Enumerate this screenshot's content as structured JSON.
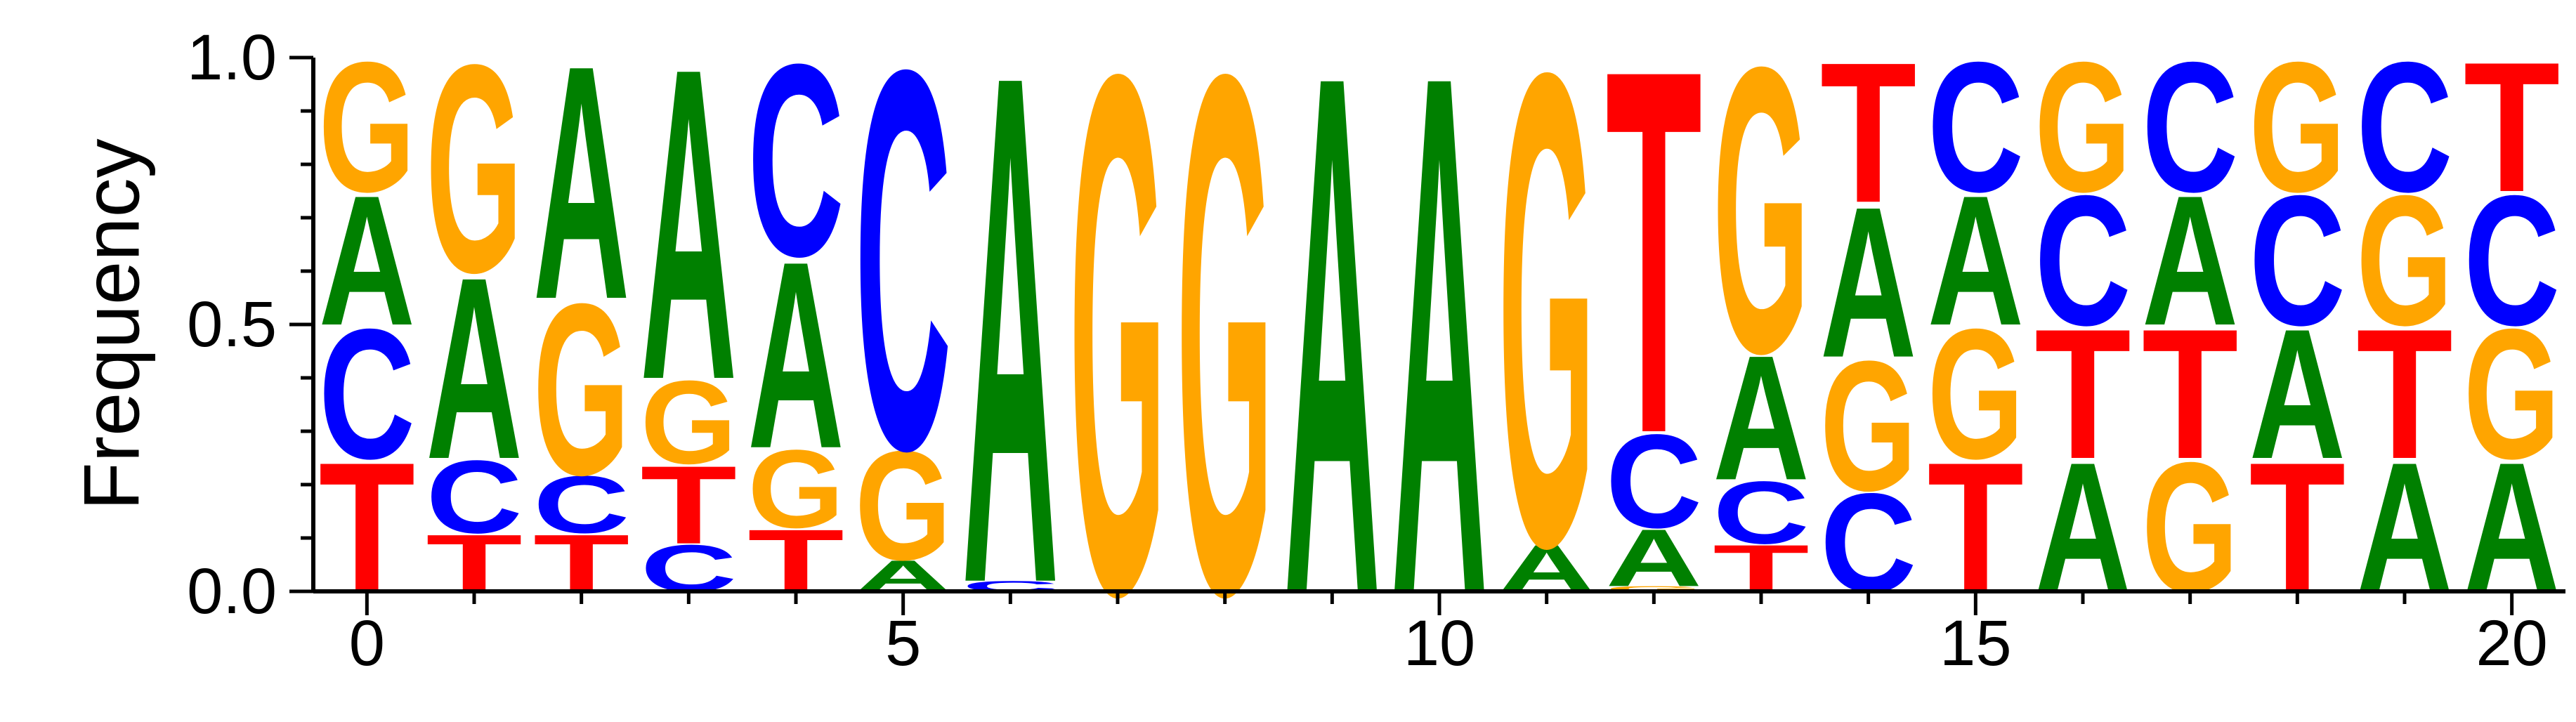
{
  "chart_data": {
    "type": "sequence-logo",
    "ylabel": "Frequency",
    "xlabel": "",
    "ylim": [
      0,
      1
    ],
    "xlim": [
      -0.5,
      20.5
    ],
    "yticks": [
      0.0,
      0.5,
      1.0
    ],
    "ytick_labels": [
      "0.0",
      "0.5",
      "1.0"
    ],
    "xticks": [
      0,
      5,
      10,
      15,
      20
    ],
    "xtick_labels": [
      "0",
      "5",
      "10",
      "15",
      "20"
    ],
    "colors": {
      "A": "#008000",
      "C": "#0000ff",
      "G": "#ffa500",
      "T": "#ff0000"
    },
    "positions": [
      {
        "x": 0,
        "stack": [
          [
            "T",
            0.25
          ],
          [
            "C",
            0.25
          ],
          [
            "A",
            0.25
          ],
          [
            "G",
            0.25
          ]
        ]
      },
      {
        "x": 1,
        "stack": [
          [
            "T",
            0.11
          ],
          [
            "C",
            0.14
          ],
          [
            "A",
            0.35
          ],
          [
            "G",
            0.4
          ]
        ]
      },
      {
        "x": 2,
        "stack": [
          [
            "T",
            0.11
          ],
          [
            "C",
            0.11
          ],
          [
            "G",
            0.33
          ],
          [
            "A",
            0.45
          ]
        ]
      },
      {
        "x": 3,
        "stack": [
          [
            "C",
            0.09
          ],
          [
            "T",
            0.15
          ],
          [
            "G",
            0.16
          ],
          [
            "A",
            0.6
          ]
        ]
      },
      {
        "x": 4,
        "stack": [
          [
            "T",
            0.12
          ],
          [
            "G",
            0.15
          ],
          [
            "A",
            0.36
          ],
          [
            "C",
            0.37
          ]
        ]
      },
      {
        "x": 5,
        "stack": [
          [
            "A",
            0.06
          ],
          [
            "G",
            0.21
          ],
          [
            "C",
            0.73
          ]
        ]
      },
      {
        "x": 6,
        "stack": [
          [
            "C",
            0.02
          ],
          [
            "A",
            0.98
          ]
        ]
      },
      {
        "x": 7,
        "stack": [
          [
            "G",
            1.0
          ]
        ]
      },
      {
        "x": 8,
        "stack": [
          [
            "G",
            1.0
          ]
        ]
      },
      {
        "x": 9,
        "stack": [
          [
            "A",
            1.0
          ]
        ]
      },
      {
        "x": 10,
        "stack": [
          [
            "A",
            1.0
          ]
        ]
      },
      {
        "x": 11,
        "stack": [
          [
            "A",
            0.09
          ],
          [
            "G",
            0.91
          ]
        ]
      },
      {
        "x": 12,
        "stack": [
          [
            "G",
            0.01
          ],
          [
            "A",
            0.11
          ],
          [
            "C",
            0.18
          ],
          [
            "T",
            0.7
          ]
        ]
      },
      {
        "x": 13,
        "stack": [
          [
            "T",
            0.09
          ],
          [
            "C",
            0.12
          ],
          [
            "A",
            0.24
          ],
          [
            "G",
            0.55
          ]
        ]
      },
      {
        "x": 14,
        "stack": [
          [
            "C",
            0.19
          ],
          [
            "G",
            0.25
          ],
          [
            "A",
            0.29
          ],
          [
            "T",
            0.27
          ]
        ]
      },
      {
        "x": 15,
        "stack": [
          [
            "T",
            0.25
          ],
          [
            "G",
            0.25
          ],
          [
            "A",
            0.25
          ],
          [
            "C",
            0.25
          ]
        ]
      },
      {
        "x": 16,
        "stack": [
          [
            "A",
            0.25
          ],
          [
            "T",
            0.25
          ],
          [
            "C",
            0.25
          ],
          [
            "G",
            0.25
          ]
        ]
      },
      {
        "x": 17,
        "stack": [
          [
            "G",
            0.25
          ],
          [
            "T",
            0.25
          ],
          [
            "A",
            0.25
          ],
          [
            "C",
            0.25
          ]
        ]
      },
      {
        "x": 18,
        "stack": [
          [
            "T",
            0.25
          ],
          [
            "A",
            0.25
          ],
          [
            "C",
            0.25
          ],
          [
            "G",
            0.25
          ]
        ]
      },
      {
        "x": 19,
        "stack": [
          [
            "A",
            0.25
          ],
          [
            "T",
            0.25
          ],
          [
            "G",
            0.25
          ],
          [
            "C",
            0.25
          ]
        ]
      },
      {
        "x": 20,
        "stack": [
          [
            "A",
            0.25
          ],
          [
            "G",
            0.25
          ],
          [
            "C",
            0.25
          ],
          [
            "T",
            0.25
          ]
        ]
      }
    ]
  }
}
